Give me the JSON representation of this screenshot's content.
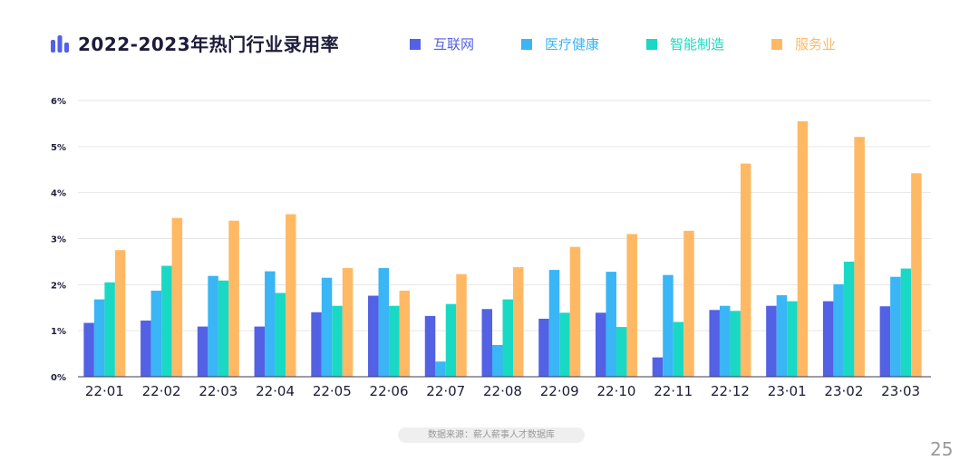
{
  "chart_data": {
    "type": "bar",
    "title": "2022-2023年热门行业录用率",
    "xlabel": "",
    "ylabel": "",
    "ylim": [
      0,
      6
    ],
    "yticks": [
      "0%",
      "1%",
      "2%",
      "3%",
      "4%",
      "5%",
      "6%"
    ],
    "grid": true,
    "legend_position": "top",
    "categories": [
      "22·01",
      "22·02",
      "22·03",
      "22·04",
      "22·05",
      "22·06",
      "22·07",
      "22·08",
      "22·09",
      "22·10",
      "22·11",
      "22·12",
      "23·01",
      "23·02",
      "23·03"
    ],
    "series": [
      {
        "name": "互联网",
        "color": "#5361e4",
        "values": [
          1.17,
          1.22,
          1.09,
          1.09,
          1.4,
          1.76,
          1.32,
          1.47,
          1.26,
          1.39,
          0.42,
          1.45,
          1.54,
          1.64,
          1.53
        ]
      },
      {
        "name": "医疗健康",
        "color": "#3ab5f5",
        "values": [
          1.68,
          1.87,
          2.19,
          2.29,
          2.15,
          2.36,
          0.33,
          0.69,
          2.32,
          2.28,
          2.21,
          1.54,
          1.77,
          2.01,
          2.17
        ]
      },
      {
        "name": "智能制造",
        "color": "#1ad9c4",
        "values": [
          2.05,
          2.41,
          2.09,
          1.82,
          1.54,
          1.54,
          1.58,
          1.68,
          1.39,
          1.08,
          1.19,
          1.43,
          1.64,
          2.5,
          2.35
        ]
      },
      {
        "name": "服务业",
        "color": "#ffb964",
        "values": [
          2.75,
          3.45,
          3.39,
          3.53,
          2.36,
          1.87,
          2.23,
          2.38,
          2.82,
          3.1,
          3.17,
          4.63,
          5.55,
          5.21,
          4.42
        ]
      }
    ]
  },
  "source_text": "数据来源：薪人薪事人才数据库",
  "page_number": "25",
  "colors": {
    "title": "#1c1c3a",
    "axis_text": "#1c1c3a",
    "grid": "#e6e6e6",
    "axis": "#3a3a5a",
    "muted": "#9a9a9a"
  }
}
